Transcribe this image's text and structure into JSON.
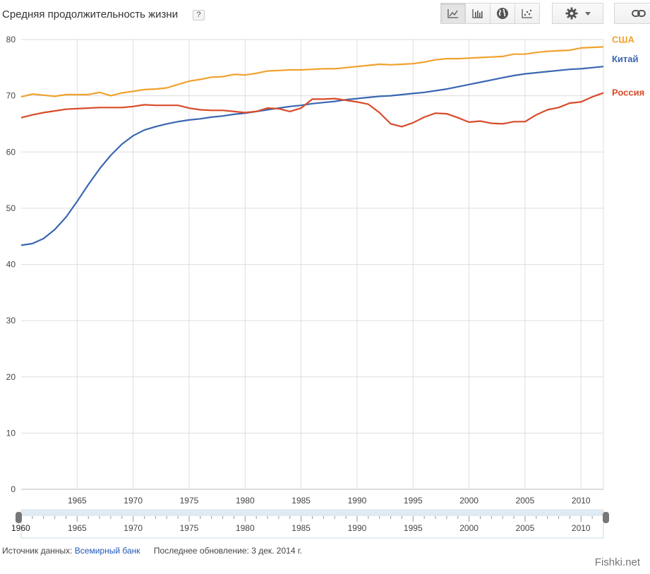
{
  "header": {
    "title": "Средняя продолжительность жизни",
    "help": "?"
  },
  "toolbar": {
    "buttons": [
      {
        "icon": "line-chart-icon",
        "active": true
      },
      {
        "icon": "bar-chart-icon",
        "active": false
      },
      {
        "icon": "globe-icon",
        "active": false
      },
      {
        "icon": "scatter-chart-icon",
        "active": false
      }
    ],
    "settings_icon": "gear-icon",
    "link_icon": "link-icon"
  },
  "chart_data": {
    "type": "line",
    "title": "Средняя продолжительность жизни",
    "xlabel": "",
    "ylabel": "",
    "xlim": [
      1960,
      2012
    ],
    "ylim": [
      0,
      80
    ],
    "yticks": [
      0,
      10,
      20,
      30,
      40,
      50,
      60,
      70,
      80
    ],
    "xticks": [
      1965,
      1970,
      1975,
      1980,
      1985,
      1990,
      1995,
      2000,
      2005,
      2010
    ],
    "grid": true,
    "legend": "right-end labels",
    "x": [
      1960,
      1961,
      1962,
      1963,
      1964,
      1965,
      1966,
      1967,
      1968,
      1969,
      1970,
      1971,
      1972,
      1973,
      1974,
      1975,
      1976,
      1977,
      1978,
      1979,
      1980,
      1981,
      1982,
      1983,
      1984,
      1985,
      1986,
      1987,
      1988,
      1989,
      1990,
      1991,
      1992,
      1993,
      1994,
      1995,
      1996,
      1997,
      1998,
      1999,
      2000,
      2001,
      2002,
      2003,
      2004,
      2005,
      2006,
      2007,
      2008,
      2009,
      2010,
      2011,
      2012
    ],
    "series": [
      {
        "name": "США",
        "color": "#f0a22e",
        "values": [
          69.8,
          70.3,
          70.1,
          69.9,
          70.2,
          70.2,
          70.2,
          70.6,
          70.0,
          70.5,
          70.8,
          71.1,
          71.2,
          71.4,
          72.0,
          72.6,
          72.9,
          73.3,
          73.4,
          73.8,
          73.7,
          74.0,
          74.4,
          74.5,
          74.6,
          74.6,
          74.7,
          74.8,
          74.8,
          75.0,
          75.2,
          75.4,
          75.6,
          75.5,
          75.6,
          75.7,
          76.0,
          76.4,
          76.6,
          76.6,
          76.7,
          76.8,
          76.9,
          77.0,
          77.4,
          77.4,
          77.7,
          77.9,
          78.0,
          78.1,
          78.5,
          78.6,
          78.7
        ]
      },
      {
        "name": "Китай",
        "color": "#3a67b2",
        "values": [
          43.4,
          43.7,
          44.6,
          46.2,
          48.4,
          51.2,
          54.2,
          57.0,
          59.4,
          61.4,
          62.9,
          63.9,
          64.5,
          65.0,
          65.4,
          65.7,
          65.9,
          66.2,
          66.4,
          66.7,
          66.9,
          67.2,
          67.5,
          67.8,
          68.1,
          68.3,
          68.6,
          68.8,
          69.0,
          69.3,
          69.5,
          69.7,
          69.9,
          70.0,
          70.2,
          70.4,
          70.6,
          70.9,
          71.2,
          71.6,
          72.0,
          72.4,
          72.8,
          73.2,
          73.6,
          73.9,
          74.1,
          74.3,
          74.5,
          74.7,
          74.8,
          75.0,
          75.2
        ]
      },
      {
        "name": "Россия",
        "color": "#d84b2a",
        "values": [
          66.1,
          66.6,
          67.0,
          67.3,
          67.6,
          67.7,
          67.8,
          67.9,
          67.9,
          67.9,
          68.1,
          68.4,
          68.3,
          68.3,
          68.3,
          67.8,
          67.5,
          67.4,
          67.4,
          67.2,
          67.0,
          67.2,
          67.8,
          67.7,
          67.2,
          67.8,
          69.4,
          69.4,
          69.5,
          69.2,
          68.9,
          68.5,
          67.0,
          65.0,
          64.5,
          65.2,
          66.2,
          66.9,
          66.8,
          66.1,
          65.3,
          65.5,
          65.1,
          65.0,
          65.4,
          65.4,
          66.6,
          67.5,
          67.9,
          68.7,
          68.9,
          69.8,
          70.5
        ]
      }
    ]
  },
  "range_slider": {
    "start_label": "1960",
    "labels": [
      "1965",
      "1970",
      "1975",
      "1980",
      "1985",
      "1990",
      "1995",
      "2000",
      "2005",
      "2010"
    ]
  },
  "source": {
    "label": "Источник данных:",
    "link": "Всемирный банк",
    "updated": "Последнее обновление: 3 дек. 2014 г."
  },
  "watermark": "Fishki.net"
}
